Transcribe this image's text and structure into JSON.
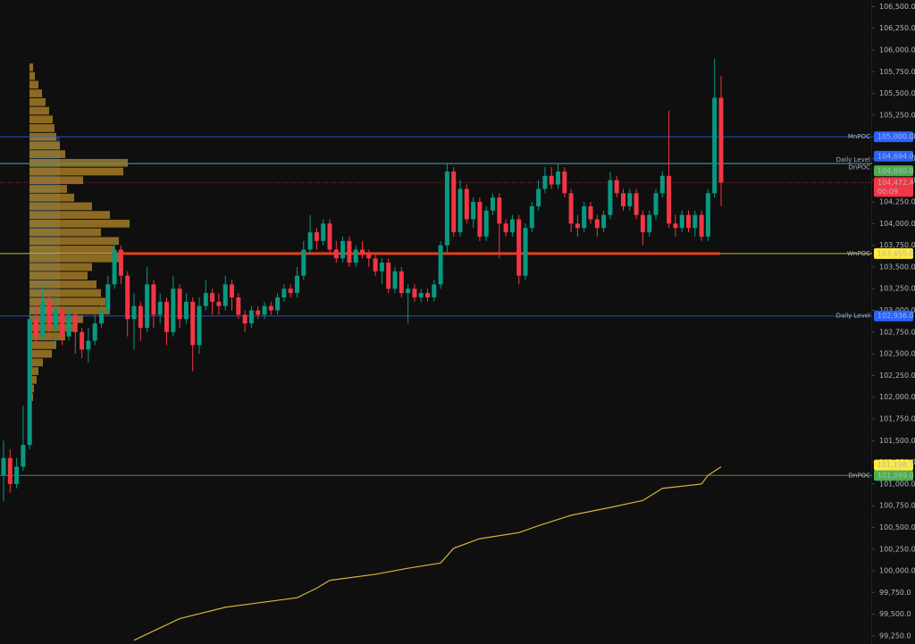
{
  "chart_data": {
    "type": "candlestick",
    "ylim": [
      99157,
      106576
    ],
    "yticks": [
      {
        "value": 99250,
        "label": "99,250.0"
      },
      {
        "value": 99500,
        "label": "99,500.0"
      },
      {
        "value": 99750,
        "label": "99,750.0"
      },
      {
        "value": 100000,
        "label": "100,000.0"
      },
      {
        "value": 100250,
        "label": "100,250.0"
      },
      {
        "value": 100500,
        "label": "100,500.0"
      },
      {
        "value": 100750,
        "label": "100,750.0"
      },
      {
        "value": 101000,
        "label": "101,000.0"
      },
      {
        "value": 101250,
        "label": "101,250.0"
      },
      {
        "value": 101500,
        "label": "101,500.0"
      },
      {
        "value": 101750,
        "label": "101,750.0"
      },
      {
        "value": 102000,
        "label": "102,000.0"
      },
      {
        "value": 102250,
        "label": "102,250.0"
      },
      {
        "value": 102500,
        "label": "102,500.0"
      },
      {
        "value": 102750,
        "label": "102,750.0"
      },
      {
        "value": 103000,
        "label": "103,000.0"
      },
      {
        "value": 103250,
        "label": "103,250.0"
      },
      {
        "value": 103500,
        "label": "103,500.0"
      },
      {
        "value": 103750,
        "label": "103,750.0"
      },
      {
        "value": 104000,
        "label": "104,000.0"
      },
      {
        "value": 104250,
        "label": "104,250.0"
      },
      {
        "value": 104500,
        "label": "104,500.0"
      },
      {
        "value": 104750,
        "label": "104,750.0"
      },
      {
        "value": 105000,
        "label": "105,000.0"
      },
      {
        "value": 105250,
        "label": "105,250.0"
      },
      {
        "value": 105500,
        "label": "105,500.0"
      },
      {
        "value": 105750,
        "label": "105,750.0"
      },
      {
        "value": 106000,
        "label": "106,000.0"
      },
      {
        "value": 106250,
        "label": "106,250.0"
      },
      {
        "value": 106500,
        "label": "106,500.0"
      }
    ],
    "up_color": "#089981",
    "down_color": "#f23645",
    "open": [
      101100,
      101300,
      101000,
      101200,
      101450,
      102900,
      102700,
      103100,
      102800,
      103000,
      102700,
      102950,
      102750,
      102550,
      102650,
      102850,
      103000,
      103300,
      103700,
      103400,
      102900,
      103050,
      102800,
      103300,
      102950,
      103100,
      102750,
      103250,
      102900,
      103100,
      102600,
      103050,
      103200,
      103100,
      103050,
      103300,
      103150,
      102950,
      102850,
      103000,
      102950,
      103050,
      103000,
      103150,
      103250,
      103200,
      103400,
      103700,
      103900,
      103800,
      104000,
      103700,
      103600,
      103800,
      103550,
      103700,
      103650,
      103600,
      103450,
      103550,
      103250,
      103450,
      103200,
      103250,
      103150,
      103200,
      103150,
      103300,
      103750,
      104600,
      103900,
      104400,
      104050,
      104250,
      103850,
      104150,
      104300,
      104000,
      103900,
      104050,
      103400,
      103950,
      104200,
      104400,
      104550,
      104450,
      104600,
      104350,
      104000,
      103950,
      104200,
      104050,
      103950,
      104100,
      104500,
      104350,
      104200,
      104350,
      104100,
      103900,
      104100,
      104350,
      104550,
      104000,
      103950,
      104100,
      103950,
      104100,
      103850,
      104350,
      105450
    ],
    "high": [
      101500,
      101400,
      101300,
      101900,
      103000,
      103100,
      103300,
      103200,
      103150,
      103050,
      103050,
      103000,
      102800,
      102800,
      102950,
      103100,
      103400,
      103800,
      103750,
      103450,
      103200,
      103100,
      103500,
      103350,
      103200,
      103150,
      103400,
      103300,
      103200,
      103150,
      103150,
      103350,
      103250,
      103200,
      103400,
      103350,
      103200,
      103000,
      103050,
      103050,
      103100,
      103100,
      103200,
      103300,
      103300,
      103500,
      103800,
      104100,
      103950,
      104050,
      104050,
      103800,
      103850,
      103850,
      103750,
      103800,
      103700,
      103650,
      103600,
      103600,
      103500,
      103500,
      103300,
      103300,
      103250,
      103250,
      103350,
      103800,
      104700,
      104650,
      104500,
      104450,
      104300,
      104300,
      104200,
      104350,
      104350,
      104050,
      104100,
      104100,
      104000,
      104250,
      104500,
      104650,
      104650,
      104700,
      104650,
      104400,
      104100,
      104250,
      104250,
      104100,
      104150,
      104600,
      104550,
      104400,
      104400,
      104400,
      104150,
      104150,
      104400,
      104600,
      105300,
      104100,
      104150,
      104150,
      104150,
      104150,
      104400,
      105900,
      105700
    ],
    "low": [
      100800,
      100900,
      100950,
      101150,
      101400,
      102600,
      102650,
      102700,
      102600,
      102600,
      102650,
      102500,
      102450,
      102400,
      102600,
      102800,
      102950,
      103250,
      103300,
      102700,
      102550,
      102650,
      102750,
      102800,
      102850,
      102600,
      102700,
      102800,
      102850,
      102300,
      102500,
      103000,
      102950,
      102950,
      103000,
      103000,
      102900,
      102750,
      102800,
      102900,
      102900,
      102950,
      102950,
      103100,
      103150,
      103150,
      103350,
      103650,
      103700,
      103750,
      103650,
      103550,
      103550,
      103500,
      103500,
      103600,
      103500,
      103400,
      103300,
      103200,
      103200,
      103150,
      102850,
      103100,
      103100,
      103100,
      103100,
      103250,
      103650,
      103850,
      103850,
      104000,
      103950,
      103800,
      103800,
      104100,
      103600,
      103850,
      103850,
      103300,
      103350,
      103900,
      104150,
      104350,
      104400,
      104400,
      104300,
      103900,
      103850,
      103900,
      104000,
      103850,
      103900,
      104050,
      104300,
      104150,
      104150,
      104050,
      103750,
      103850,
      104050,
      104300,
      103950,
      103850,
      103900,
      103900,
      103850,
      103800,
      103800,
      104300,
      104200
    ],
    "close": [
      101300,
      101000,
      101200,
      101450,
      102900,
      102700,
      103100,
      102800,
      103000,
      102700,
      102950,
      102750,
      102550,
      102650,
      102850,
      103000,
      103300,
      103700,
      103400,
      102900,
      103050,
      102800,
      103300,
      102950,
      103100,
      102750,
      103250,
      102900,
      103100,
      102600,
      103050,
      103200,
      103100,
      103050,
      103300,
      103150,
      102950,
      102850,
      103000,
      102950,
      103050,
      103000,
      103150,
      103250,
      103200,
      103400,
      103700,
      103900,
      103800,
      104000,
      103700,
      103600,
      103800,
      103550,
      103700,
      103650,
      103600,
      103450,
      103550,
      103250,
      103450,
      103200,
      103250,
      103150,
      103200,
      103150,
      103300,
      103750,
      104600,
      103900,
      104400,
      104050,
      104250,
      103850,
      104150,
      104300,
      104000,
      103900,
      104050,
      103400,
      103950,
      104200,
      104400,
      104550,
      104450,
      104600,
      104350,
      104000,
      103950,
      104200,
      104050,
      103950,
      104100,
      104500,
      104350,
      104200,
      104350,
      104100,
      103900,
      104100,
      104350,
      104550,
      104000,
      103950,
      104100,
      103950,
      104100,
      103850,
      104350,
      105450,
      104472.4
    ],
    "line": {
      "color": "#d4b43a",
      "x": [
        20,
        27,
        34,
        41,
        45,
        48,
        50,
        57,
        62,
        67,
        69,
        73,
        79,
        82,
        87,
        93,
        98,
        101,
        107,
        108,
        110
      ],
      "values": [
        99200,
        99450,
        99580,
        99650,
        99690,
        99800,
        99890,
        99960,
        100030,
        100090,
        100260,
        100370,
        100440,
        100520,
        100640,
        100730,
        100810,
        100950,
        101000,
        101100,
        101198.7
      ],
      "value_labels": [
        null,
        null,
        null,
        null,
        null,
        null,
        null,
        null,
        null,
        null,
        null,
        null,
        null,
        null,
        null,
        null,
        null,
        null,
        null,
        null,
        "101,198.7"
      ]
    },
    "volume_profile": {
      "color": "#b8892a",
      "prices": [
        105800,
        105700,
        105600,
        105500,
        105400,
        105300,
        105200,
        105100,
        105000,
        104900,
        104800,
        104700,
        104600,
        104500,
        104400,
        104300,
        104200,
        104100,
        104000,
        103900,
        103800,
        103700,
        103600,
        103500,
        103400,
        103300,
        103200,
        103100,
        103000,
        102900,
        102800,
        102700,
        102600,
        102500,
        102400,
        102300,
        102200,
        102100,
        102000
      ],
      "volumes": [
        4,
        6,
        10,
        14,
        18,
        22,
        26,
        28,
        30,
        34,
        40,
        110,
        105,
        60,
        42,
        50,
        70,
        90,
        112,
        80,
        100,
        95,
        100,
        70,
        65,
        75,
        80,
        85,
        90,
        60,
        50,
        40,
        30,
        25,
        15,
        10,
        8,
        5,
        4
      ]
    },
    "levels": [
      {
        "name": "MnPOC",
        "value": 105000,
        "value_label": "105,000.0",
        "color": "#2962ff"
      },
      {
        "name": "Daily Level",
        "value": 104694,
        "value_label": "104,694.0",
        "color": "#2962ff"
      },
      {
        "name": "DnPOC",
        "value": 104690,
        "value_label": "104,690.0",
        "color": "#4caf50"
      },
      {
        "name": "WnPOC",
        "value": 103655,
        "value_label": "103,655.0",
        "color": "#ffeb3b"
      },
      {
        "name": "Daily Level",
        "value": 102936,
        "value_label": "102,936.0",
        "color": "#2962ff"
      },
      {
        "name": "DnPOC",
        "value": 101099,
        "value_label": "101,099.0",
        "color": "#4caf50"
      }
    ],
    "last_price": {
      "value": 104472.4,
      "value_label": "104,472.4",
      "countdown": "00:09",
      "color": "#f23645"
    }
  }
}
